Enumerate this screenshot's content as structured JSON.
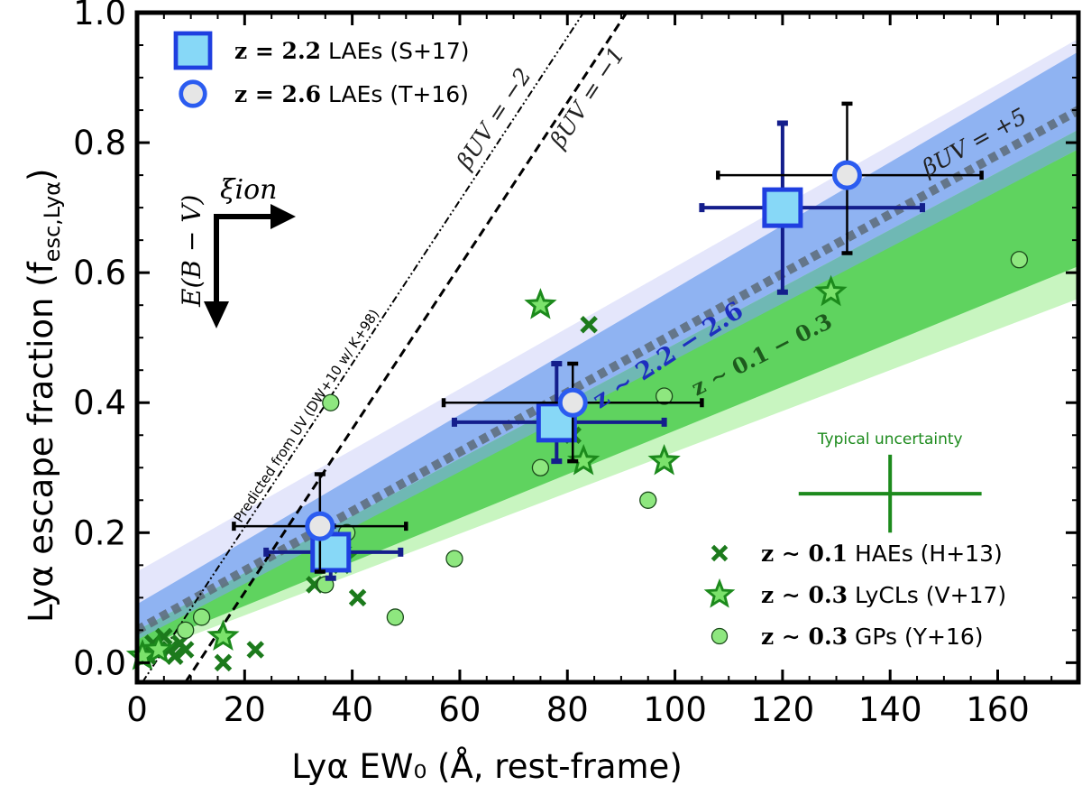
{
  "chart_data": {
    "type": "scatter",
    "xlabel": "Lyα EW₀ (Å, rest-frame)",
    "ylabel": "Lyα escape fraction (f",
    "ylabel_sub": "esc,Lyα",
    "ylabel_close": ")",
    "xlim": [
      0,
      175
    ],
    "ylim": [
      -0.03,
      1.0
    ],
    "xticks": [
      0,
      20,
      40,
      60,
      80,
      100,
      120,
      140,
      160
    ],
    "yticks": [
      0.0,
      0.2,
      0.4,
      0.6,
      0.8,
      1.0
    ],
    "xtick_labels": [
      "0",
      "20",
      "40",
      "60",
      "80",
      "100",
      "120",
      "140",
      "160"
    ],
    "ytick_labels": [
      "0.0",
      "0.2",
      "0.4",
      "0.6",
      "0.8",
      "1.0"
    ],
    "bands": [
      {
        "name": "z ~ 2.2-2.6 fit outer",
        "color": "#e4e6fb",
        "x": [
          0,
          175
        ],
        "lower": [
          0.02,
          0.72
        ],
        "upper": [
          0.14,
          0.96
        ]
      },
      {
        "name": "z ~ 2.2-2.6 fit inner",
        "color": "#8fb3f2",
        "x": [
          0,
          175
        ],
        "lower": [
          0.04,
          0.76
        ],
        "upper": [
          0.09,
          0.94
        ]
      },
      {
        "name": "z ~ 0.1-0.3 fit outer",
        "color": "#c8f5c0",
        "x": [
          0,
          175
        ],
        "lower": [
          0.01,
          0.56
        ],
        "upper": [
          0.05,
          0.82
        ]
      },
      {
        "name": "z ~ 0.1-0.3 fit inner",
        "color": "#5fd35f",
        "x": [
          0,
          175
        ],
        "lower": [
          0.02,
          0.61
        ],
        "upper": [
          0.045,
          0.79
        ]
      },
      {
        "name": "overlap",
        "color": "#6fb8b4",
        "x": [
          0,
          175
        ],
        "lower": [
          0.035,
          0.79
        ],
        "upper": [
          0.05,
          0.82
        ]
      }
    ],
    "lines": [
      {
        "name": "beta_uv_plus5",
        "label": "βUV = +5",
        "style": "thick-dotted",
        "color": "#5d6b78",
        "x": [
          0,
          175
        ],
        "y": [
          0.05,
          0.85
        ]
      },
      {
        "name": "beta_uv_minus1",
        "label": "βUV = −1",
        "style": "dashed",
        "color": "#000000",
        "x": [
          9,
          91
        ],
        "y": [
          -0.03,
          1.0
        ]
      },
      {
        "name": "beta_uv_minus2",
        "label": "βUV = −2",
        "style": "dashdotdot",
        "color": "#000000",
        "x": [
          1,
          83
        ],
        "y": [
          -0.03,
          1.0
        ]
      }
    ],
    "series": [
      {
        "name": "z = 2.2 LAEs (S+17)",
        "marker": "square",
        "face": "#87d8f7",
        "edge": "#1f3fe0",
        "points": [
          {
            "x": 36,
            "y": 0.17,
            "xerr": [
              12,
              13
            ],
            "yerr": [
              0.04,
              0.04
            ]
          },
          {
            "x": 78,
            "y": 0.37,
            "xerr": [
              19,
              20
            ],
            "yerr": [
              0.06,
              0.09
            ]
          },
          {
            "x": 120,
            "y": 0.7,
            "xerr": [
              15,
              26
            ],
            "yerr": [
              0.13,
              0.13
            ]
          }
        ]
      },
      {
        "name": "z = 2.6 LAEs (T+16)",
        "marker": "circle",
        "face": "#e6e6e6",
        "edge": "#2b5cf0",
        "points": [
          {
            "x": 34,
            "y": 0.21,
            "xerr": [
              16,
              16
            ],
            "yerr": [
              0.07,
              0.08
            ]
          },
          {
            "x": 81,
            "y": 0.4,
            "xerr": [
              24,
              24
            ],
            "yerr": [
              0.09,
              0.06
            ]
          },
          {
            "x": 132,
            "y": 0.75,
            "xerr": [
              24,
              25
            ],
            "yerr": [
              0.12,
              0.11
            ]
          }
        ]
      },
      {
        "name": "z ~ 0.1 HAEs (H+13)",
        "marker": "x",
        "color": "#1c7a1c",
        "points": [
          {
            "x": 2,
            "y": 0.01
          },
          {
            "x": 3,
            "y": 0.03
          },
          {
            "x": 4,
            "y": 0.02
          },
          {
            "x": 5,
            "y": 0.04
          },
          {
            "x": 6,
            "y": 0.02
          },
          {
            "x": 7,
            "y": 0.01
          },
          {
            "x": 8,
            "y": 0.03
          },
          {
            "x": 9,
            "y": 0.02
          },
          {
            "x": 16,
            "y": 0.0
          },
          {
            "x": 22,
            "y": 0.02
          },
          {
            "x": 33,
            "y": 0.12
          },
          {
            "x": 35,
            "y": 0.16
          },
          {
            "x": 38,
            "y": 0.15
          },
          {
            "x": 41,
            "y": 0.1
          },
          {
            "x": 76,
            "y": 0.37
          },
          {
            "x": 81,
            "y": 0.35
          },
          {
            "x": 84,
            "y": 0.52
          }
        ]
      },
      {
        "name": "z ~ 0.3 LyCLs (V+17)",
        "marker": "star",
        "face": "#7be26b",
        "edge": "#1c8a1c",
        "points": [
          {
            "x": 1,
            "y": 0.01
          },
          {
            "x": 4,
            "y": 0.02
          },
          {
            "x": 16,
            "y": 0.04
          },
          {
            "x": 37,
            "y": 0.17
          },
          {
            "x": 38,
            "y": 0.16
          },
          {
            "x": 75,
            "y": 0.55
          },
          {
            "x": 78,
            "y": 0.36
          },
          {
            "x": 83,
            "y": 0.31
          },
          {
            "x": 98,
            "y": 0.31
          },
          {
            "x": 129,
            "y": 0.57
          }
        ]
      },
      {
        "name": "z ~ 0.3 GPs (Y+16)",
        "marker": "circle-small",
        "face": "#8ee77f",
        "edge": "#1a4a1a",
        "points": [
          {
            "x": 9,
            "y": 0.05
          },
          {
            "x": 12,
            "y": 0.07
          },
          {
            "x": 35,
            "y": 0.12
          },
          {
            "x": 36,
            "y": 0.4
          },
          {
            "x": 39,
            "y": 0.2
          },
          {
            "x": 48,
            "y": 0.07
          },
          {
            "x": 59,
            "y": 0.16
          },
          {
            "x": 75,
            "y": 0.3
          },
          {
            "x": 95,
            "y": 0.25
          },
          {
            "x": 98,
            "y": 0.41
          },
          {
            "x": 164,
            "y": 0.62
          }
        ]
      }
    ],
    "typical_uncertainty": {
      "label": "Typical uncertainty",
      "x": 140,
      "y": 0.26,
      "xerr": 17,
      "yerr": 0.06,
      "color": "#1c8a1c"
    },
    "legend_top": {
      "position": "top-left",
      "entries": [
        {
          "series": "z = 2.2 LAEs (S+17)",
          "math": "z = 2.2",
          "text": " LAEs (S+17)"
        },
        {
          "series": "z = 2.6 LAEs (T+16)",
          "math": "z = 2.6",
          "text": " LAEs (T+16)"
        }
      ]
    },
    "legend_bottom": {
      "position": "bottom-right",
      "entries": [
        {
          "series": "z ~ 0.1 HAEs (H+13)",
          "math": "z ∼ 0.1",
          "text": " HAEs (H+13)"
        },
        {
          "series": "z ~ 0.3 LyCLs (V+17)",
          "math": "z ∼ 0.3",
          "text": " LyCLs (V+17)"
        },
        {
          "series": "z ~ 0.3 GPs (Y+16)",
          "math": "z ∼ 0.3",
          "text": " GPs (Y+16)"
        }
      ]
    },
    "annotations": {
      "predicted": "Predicted from UV (DW+10 w/ K+98)",
      "beta_plus5": "βUV = +5",
      "beta_minus1": "βUV = −1",
      "beta_minus2": "βUV = −2",
      "z_high": "z ∼ 2.2 − 2.6",
      "z_low": "z ∼ 0.1 − 0.3",
      "xi_ion": "ξion",
      "ebv": "E(B − V)"
    }
  }
}
